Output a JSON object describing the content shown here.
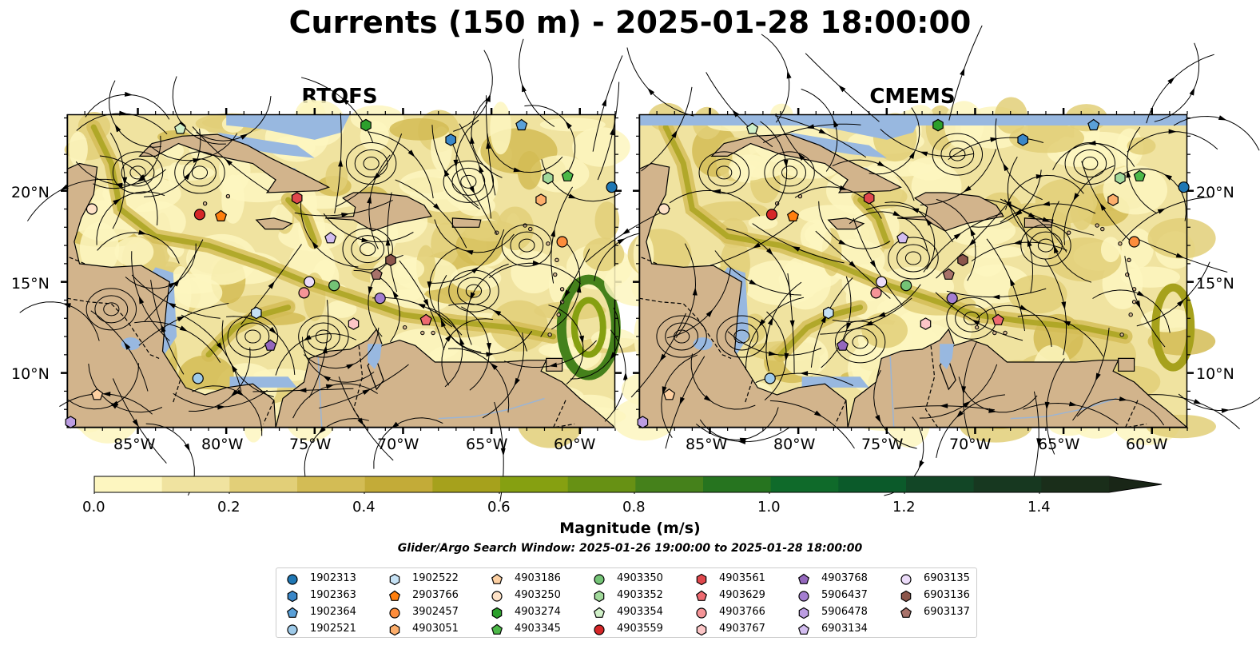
{
  "title": "Currents (150 m) - 2025-01-28 18:00:00",
  "panels": [
    {
      "title": "RTOFS"
    },
    {
      "title": "CMEMS"
    }
  ],
  "axes": {
    "lon_ticks": [
      "85°W",
      "80°W",
      "75°W",
      "70°W",
      "65°W",
      "60°W"
    ],
    "lat_ticks": [
      "20°N",
      "15°N",
      "10°N"
    ]
  },
  "colorbar": {
    "label": "Magnitude (m/s)",
    "ticks": [
      "0.0",
      "0.2",
      "0.4",
      "0.6",
      "0.8",
      "1.0",
      "1.2",
      "1.4"
    ],
    "colors": [
      "#fdf6c0",
      "#f0e3a0",
      "#e2cf78",
      "#d3bc55",
      "#c3ab38",
      "#a6a11c",
      "#86a011",
      "#679114",
      "#45811b",
      "#26741f",
      "#0f6a2a",
      "#0b5a2a",
      "#124626",
      "#173820",
      "#1a2e1a",
      "#192617"
    ]
  },
  "search_window": "Glider/Argo Search Window: 2025-01-26 19:00:00 to 2025-01-28 18:00:00",
  "colors": {
    "land": "#d2b48c",
    "water": "#98b8e0"
  },
  "legend": [
    {
      "id": "1902313",
      "marker": "circle",
      "color": "#1f77b4"
    },
    {
      "id": "1902363",
      "marker": "hexagon",
      "color": "#3a87c8"
    },
    {
      "id": "1902364",
      "marker": "pentagon",
      "color": "#5aa0d8"
    },
    {
      "id": "1902521",
      "marker": "circle",
      "color": "#9ecae9"
    },
    {
      "id": "1902522",
      "marker": "hexagon",
      "color": "#c6e2f5"
    },
    {
      "id": "2903766",
      "marker": "pentagon",
      "color": "#ff7f0e"
    },
    {
      "id": "3902457",
      "marker": "circle",
      "color": "#fd8d3c"
    },
    {
      "id": "4903051",
      "marker": "hexagon",
      "color": "#fdae6b"
    },
    {
      "id": "4903186",
      "marker": "pentagon",
      "color": "#fdd0a2"
    },
    {
      "id": "4903250",
      "marker": "circle",
      "color": "#fee2c7"
    },
    {
      "id": "4903274",
      "marker": "hexagon",
      "color": "#2ca02c"
    },
    {
      "id": "4903345",
      "marker": "pentagon",
      "color": "#4cb848"
    },
    {
      "id": "4903350",
      "marker": "circle",
      "color": "#74c476"
    },
    {
      "id": "4903352",
      "marker": "hexagon",
      "color": "#a1d99b"
    },
    {
      "id": "4903354",
      "marker": "pentagon",
      "color": "#d0f0c8"
    },
    {
      "id": "4903559",
      "marker": "circle",
      "color": "#d62728"
    },
    {
      "id": "4903561",
      "marker": "hexagon",
      "color": "#e0474c"
    },
    {
      "id": "4903629",
      "marker": "pentagon",
      "color": "#ee6a70"
    },
    {
      "id": "4903766",
      "marker": "circle",
      "color": "#f59497"
    },
    {
      "id": "4903767",
      "marker": "hexagon",
      "color": "#fcc6c7"
    },
    {
      "id": "4903768",
      "marker": "pentagon",
      "color": "#9467bd"
    },
    {
      "id": "5906437",
      "marker": "circle",
      "color": "#a47ed1"
    },
    {
      "id": "5906478",
      "marker": "hexagon",
      "color": "#bc9de2"
    },
    {
      "id": "6903134",
      "marker": "pentagon",
      "color": "#d3bdf0"
    },
    {
      "id": "6903135",
      "marker": "circle",
      "color": "#ecdcfa"
    },
    {
      "id": "6903136",
      "marker": "hexagon",
      "color": "#8c564b"
    },
    {
      "id": "6903137",
      "marker": "pentagon",
      "color": "#a8726a"
    }
  ],
  "floats": [
    {
      "id": "1902313",
      "lon": -58.2,
      "lat": 20.2
    },
    {
      "id": "1902363",
      "lon": -67.3,
      "lat": 22.8
    },
    {
      "id": "1902364",
      "lon": -63.3,
      "lat": 23.6
    },
    {
      "id": "1902521",
      "lon": -81.6,
      "lat": 9.7
    },
    {
      "id": "1902522",
      "lon": -78.3,
      "lat": 13.3
    },
    {
      "id": "2903766",
      "lon": -80.3,
      "lat": 18.6
    },
    {
      "id": "3902457",
      "lon": -61.0,
      "lat": 17.2
    },
    {
      "id": "4903051",
      "lon": -62.2,
      "lat": 19.5
    },
    {
      "id": "4903186",
      "lon": -87.3,
      "lat": 8.8
    },
    {
      "id": "4903250",
      "lon": -87.6,
      "lat": 19.0
    },
    {
      "id": "4903274",
      "lon": -72.1,
      "lat": 23.6
    },
    {
      "id": "4903345",
      "lon": -60.7,
      "lat": 20.8
    },
    {
      "id": "4903350",
      "lon": -73.9,
      "lat": 14.8
    },
    {
      "id": "4903352",
      "lon": -61.8,
      "lat": 20.7
    },
    {
      "id": "4903354",
      "lon": -82.6,
      "lat": 23.4
    },
    {
      "id": "4903559",
      "lon": -81.5,
      "lat": 18.7
    },
    {
      "id": "4903561",
      "lon": -76.0,
      "lat": 19.6
    },
    {
      "id": "4903629",
      "lon": -68.7,
      "lat": 12.9
    },
    {
      "id": "4903766",
      "lon": -75.6,
      "lat": 14.4
    },
    {
      "id": "4903767",
      "lon": -72.8,
      "lat": 12.7
    },
    {
      "id": "4903768",
      "lon": -77.5,
      "lat": 11.5
    },
    {
      "id": "5906437",
      "lon": -71.3,
      "lat": 14.1
    },
    {
      "id": "5906478",
      "lon": -88.8,
      "lat": 7.3
    },
    {
      "id": "6903134",
      "lon": -74.1,
      "lat": 17.4
    },
    {
      "id": "6903135",
      "lon": -75.3,
      "lat": 15.0
    },
    {
      "id": "6903136",
      "lon": -70.7,
      "lat": 16.2
    },
    {
      "id": "6903137",
      "lon": -71.5,
      "lat": 15.4
    }
  ]
}
